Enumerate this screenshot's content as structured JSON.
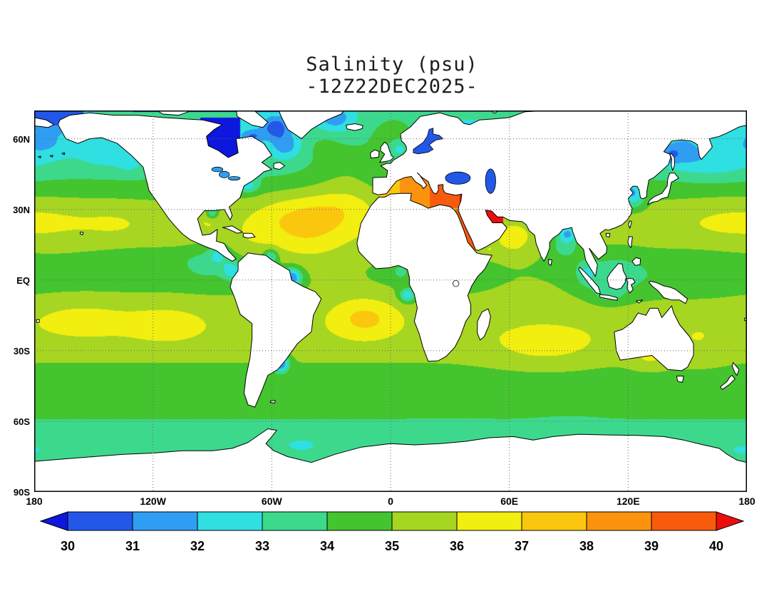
{
  "title": "Salinity (psu)",
  "subtitle": "-12Z22DEC2025-",
  "chart_data": {
    "type": "heatmap",
    "title": "Salinity (psu)",
    "subtitle": "-12Z22DEC2025-",
    "variable": "sea surface salinity",
    "units": "psu",
    "colorbar": {
      "levels": [
        30,
        31,
        32,
        33,
        34,
        35,
        36,
        37,
        38,
        39,
        40
      ],
      "colors": {
        "under": "#0d17dd",
        "segments": [
          "#2257e8",
          "#2f9ef2",
          "#2fdfe2",
          "#3cd98d",
          "#44c42e",
          "#a6d622",
          "#f2ee10",
          "#fbc70e",
          "#fb930e",
          "#f95b0c"
        ],
        "over": "#ee0d0d"
      }
    },
    "axes": {
      "lat_ticks": [
        {
          "label": "60N",
          "value": 60
        },
        {
          "label": "30N",
          "value": 30
        },
        {
          "label": "EQ",
          "value": 0
        },
        {
          "label": "30S",
          "value": -30
        },
        {
          "label": "60S",
          "value": -60
        },
        {
          "label": "90S",
          "value": -90
        }
      ],
      "lon_ticks": [
        {
          "label": "180",
          "value": -180
        },
        {
          "label": "120W",
          "value": -120
        },
        {
          "label": "60W",
          "value": -60
        },
        {
          "label": "0",
          "value": 0
        },
        {
          "label": "60E",
          "value": 60
        },
        {
          "label": "120E",
          "value": 120
        },
        {
          "label": "180",
          "value": 180
        }
      ],
      "extent": {
        "lon": [
          -180,
          180
        ],
        "lat": [
          -90,
          72
        ]
      },
      "grid": true
    },
    "field": {
      "base": {
        "offset": 34.0,
        "lat_bumps": [
          [
            24,
            280,
            1.55
          ],
          [
            -19,
            330,
            1.35
          ],
          [
            62,
            380,
            -1.1
          ],
          [
            -70,
            250,
            -0.45
          ],
          [
            -40,
            900,
            0.4
          ]
        ]
      },
      "anomalies": [
        [
          "na-subtropical-max",
          -42,
          26,
          26,
          11,
          1.9
        ],
        [
          "azores-current",
          -22,
          33,
          16,
          8,
          0.65
        ],
        [
          "ne-atlantic-drift",
          -22,
          50,
          20,
          12,
          1.2
        ],
        [
          "irminger",
          -35,
          58,
          10,
          6,
          0.7
        ],
        [
          "norwegian-sea",
          2,
          62,
          14,
          9,
          1.5
        ],
        [
          "gulf-of-mexico",
          -92,
          25,
          8,
          5,
          0.5
        ],
        [
          "caribbean",
          -72,
          16,
          12,
          6,
          0.35
        ],
        [
          "eq-atlantic",
          -30,
          5,
          25,
          12,
          0.5
        ],
        [
          "trop-n-atlantic",
          -45,
          14,
          18,
          8,
          0.5
        ],
        [
          "sa-subtropical-max",
          -13,
          -16,
          17,
          9,
          1.75
        ],
        [
          "arabian-sea",
          62,
          16,
          11,
          8,
          1.0
        ],
        [
          "gulf-of-aden",
          49,
          12.5,
          5,
          3,
          0.7
        ],
        [
          "s-indian-max",
          78,
          -28,
          28,
          9,
          1.05
        ],
        [
          "eq-indian",
          70,
          -3,
          20,
          10,
          0.35
        ],
        [
          "bay-of-bengal",
          88,
          15,
          8,
          6,
          -1.6
        ],
        [
          "n-bay-of-bengal",
          89.5,
          20,
          5,
          3.5,
          -3.0
        ],
        [
          "np-subtropical-max",
          178,
          25,
          32,
          9,
          0.75
        ],
        [
          "np-subtropical-e",
          -138,
          24,
          18,
          8,
          0.45
        ],
        [
          "nw-pac-subpolar",
          162,
          50,
          20,
          7,
          -1.15
        ],
        [
          "okhotsk",
          148,
          55,
          8,
          6,
          -1.2
        ],
        [
          "bering-sea",
          -175,
          58,
          12,
          6,
          -1.1
        ],
        [
          "alaska-gyre",
          -143,
          54,
          13,
          6,
          -1.0
        ],
        [
          "bc-coast",
          -132,
          50,
          6,
          5,
          -0.8
        ],
        [
          "chukchi",
          -170,
          70,
          12,
          6,
          -3.0
        ],
        [
          "e-pac-fresh-pool",
          -93,
          7,
          12,
          7,
          -1.1
        ],
        [
          "panama-bight",
          -80,
          4,
          5,
          4,
          -2.2
        ],
        [
          "cam-coast",
          -87,
          11,
          5,
          4,
          -1.6
        ],
        [
          "itcz-pacific",
          -125,
          9,
          25,
          5,
          -0.5
        ],
        [
          "w-pac-fresh",
          150,
          3,
          25,
          9,
          -0.55
        ],
        [
          "se-asia-seas",
          113,
          2,
          16,
          10,
          -1.2
        ],
        [
          "malacca",
          99,
          3,
          5,
          5,
          -1.4
        ],
        [
          "java-sea",
          110,
          -6,
          8,
          4,
          -1.0
        ],
        [
          "yellow-sea",
          123,
          34,
          6,
          5,
          -1.7
        ],
        [
          "bohai",
          121.5,
          38,
          5,
          4,
          -1.9
        ],
        [
          "amur-mouth",
          141,
          53,
          5,
          4,
          -1.5
        ],
        [
          "sp-max-w",
          -155,
          -17,
          25,
          8,
          0.95
        ],
        [
          "sp-max-e",
          -113,
          -19,
          20,
          8,
          1.05
        ],
        [
          "tasman-coral",
          155,
          -27,
          15,
          10,
          0.5
        ],
        [
          "amazon-plume",
          -50,
          1,
          5,
          4,
          -4.0
        ],
        [
          "orinoco-plume",
          -60.5,
          10,
          3.5,
          3,
          -2.4
        ],
        [
          "plata-plume",
          -55.5,
          -35.5,
          4,
          3.5,
          -4.2
        ],
        [
          "congo-plume",
          8.5,
          -6.5,
          4,
          3,
          -2.8
        ],
        [
          "niger-delta",
          5,
          3.5,
          4,
          3,
          -1.2
        ],
        [
          "us-east-coast",
          -72,
          40,
          5,
          3,
          -2.0
        ],
        [
          "mississippi",
          -90,
          28.5,
          3,
          2.5,
          -2.5
        ],
        [
          "labrador-sea",
          -53,
          57,
          7,
          5,
          -1.7
        ],
        [
          "hudson-strait-out",
          -70,
          61,
          6,
          3,
          -2.0
        ],
        [
          "davis-strait",
          -58,
          65,
          7,
          5,
          -2.6
        ],
        [
          "e-greenland",
          -28,
          69,
          8,
          5,
          -1.9
        ],
        [
          "north-sea",
          4,
          56,
          5,
          4,
          -1.3
        ],
        [
          "weddell",
          -45,
          -70,
          12,
          4,
          -0.9
        ],
        [
          "ross",
          178,
          -72,
          12,
          4,
          -0.8
        ],
        [
          "so-patch-indian",
          90,
          -64,
          15,
          4,
          -0.5
        ],
        [
          "so-patch-pacific",
          -130,
          -69,
          20,
          4,
          -0.5
        ],
        [
          "so-patch-atlantic",
          30,
          -66,
          15,
          4,
          -0.5
        ],
        [
          "aus-bight",
          131,
          -33,
          10,
          5,
          1.0
        ]
      ],
      "regions": [
        [
          "mediterranean-west",
          -5.8,
          3,
          30.5,
          43.4,
          37.3,
          37.9
        ],
        [
          "mediterranean-east",
          3,
          36.6,
          30.5,
          45.8,
          37.9,
          40.1
        ],
        [
          "red-sea",
          31.5,
          43.5,
          12.5,
          30,
          39.3,
          39.3
        ],
        [
          "persian-gulf",
          46.5,
          57,
          22.5,
          31,
          40.3,
          40.3
        ],
        [
          "hudson-bay",
          -96,
          -76,
          50.5,
          69,
          27.5,
          27.5
        ],
        [
          "canadian-arctic",
          -130,
          -50,
          71.5,
          75.2,
          29.5,
          29.5
        ],
        [
          "bering-strait-arctic",
          -180,
          -155,
          66,
          75.2,
          30.5,
          30.5
        ],
        [
          "chukotka-arctic",
          170,
          180,
          66,
          75.2,
          30.5,
          30.5
        ]
      ]
    },
    "lake_colors": {
      "black-sea": "#2257e8",
      "caspian-sea": "#2257e8",
      "baltic-sea": "#2257e8",
      "great-lakes": "#2f9ef2"
    }
  }
}
